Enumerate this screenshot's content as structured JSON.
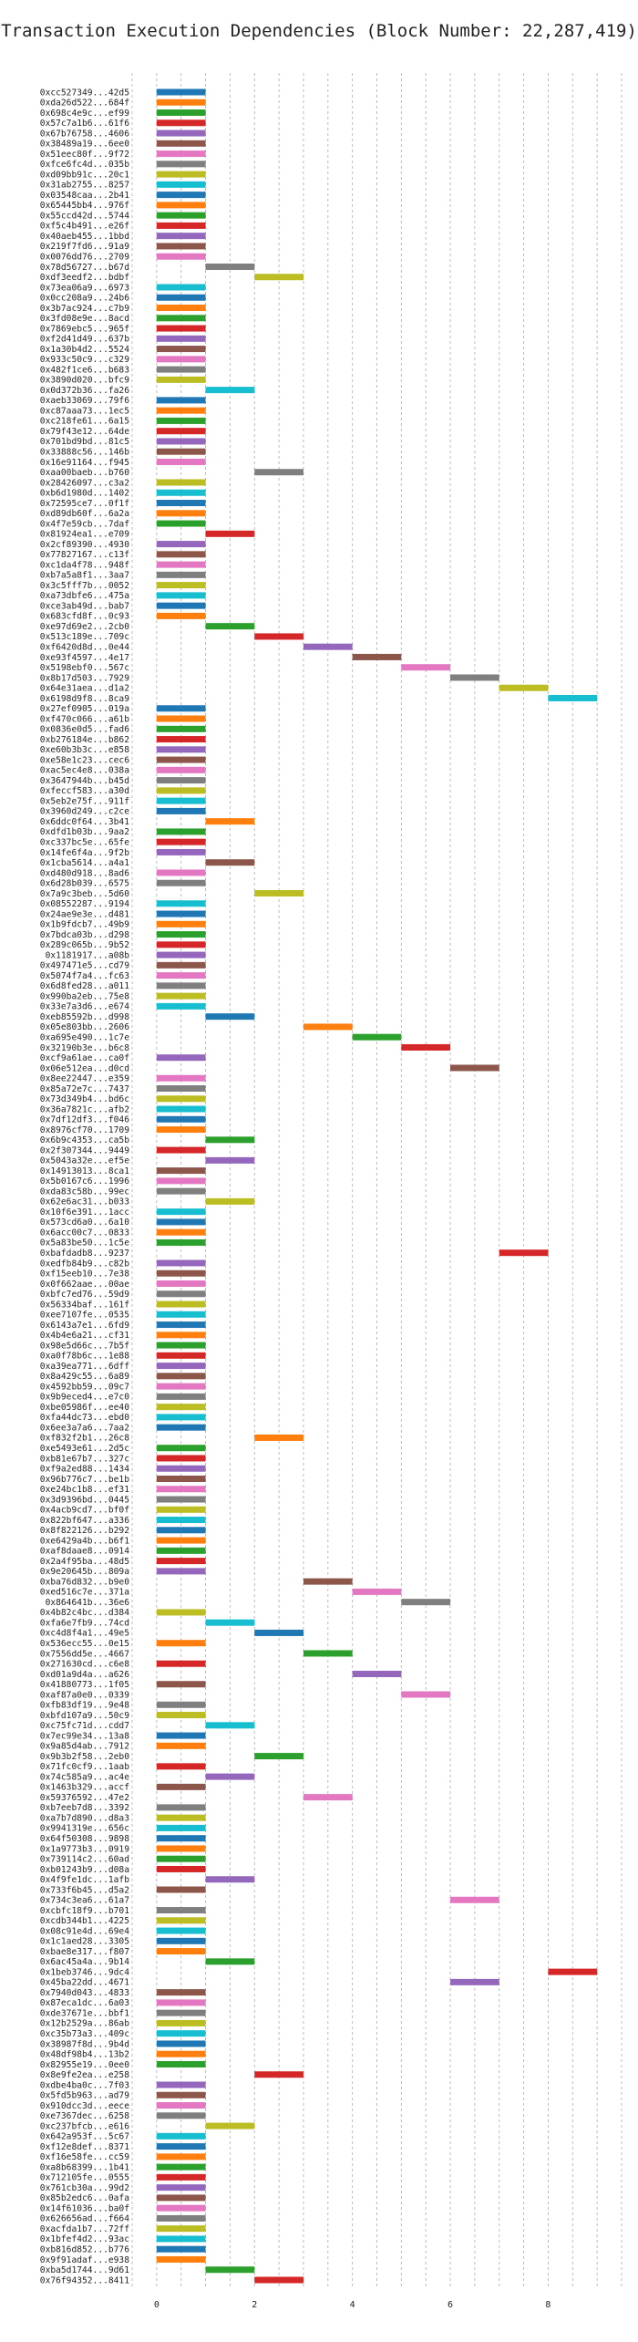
{
  "chart_data": {
    "type": "bar",
    "subtype": "gantt",
    "title": "Transaction Execution Dependencies (Block Number: 22,287,419)",
    "xlabel": "",
    "ylabel": "",
    "x_ticks": [
      0,
      2,
      4,
      6,
      8
    ],
    "x_grid_step": 0.5,
    "xlim": [
      -0.5,
      9.5
    ],
    "grid": true,
    "legend": "none",
    "palette": [
      "#1f77b4",
      "#ff7f0e",
      "#2ca02c",
      "#d62728",
      "#9467bd",
      "#8c564b",
      "#e377c2",
      "#7f7f7f",
      "#bcbd22",
      "#17becf"
    ],
    "transactions": [
      {
        "hash": "0xcc527349...42d5",
        "start": 0
      },
      {
        "hash": "0xda26d522...684f",
        "start": 0
      },
      {
        "hash": "0x698c4e9c...ef99",
        "start": 0
      },
      {
        "hash": "0x57c7a1b6...61f6",
        "start": 0
      },
      {
        "hash": "0x67b76758...4606",
        "start": 0
      },
      {
        "hash": "0x38489a19...6ee0",
        "start": 0
      },
      {
        "hash": "0x51eec80f...9f72",
        "start": 0
      },
      {
        "hash": "0xfce6fc4d...035b",
        "start": 0
      },
      {
        "hash": "0xd09bb91c...20c1",
        "start": 0
      },
      {
        "hash": "0x31ab2755...8257",
        "start": 0
      },
      {
        "hash": "0x03548caa...2b41",
        "start": 0
      },
      {
        "hash": "0x65445bb4...976f",
        "start": 0
      },
      {
        "hash": "0x55ccd42d...5744",
        "start": 0
      },
      {
        "hash": "0xf5c4b491...e26f",
        "start": 0
      },
      {
        "hash": "0x40aeb455...1bbd",
        "start": 0
      },
      {
        "hash": "0x219f7fd6...91a9",
        "start": 0
      },
      {
        "hash": "0x0076dd76...2709",
        "start": 0
      },
      {
        "hash": "0x78d56727...b67d",
        "start": 1
      },
      {
        "hash": "0xdf3eedf2...bdbf",
        "start": 2
      },
      {
        "hash": "0x73ea06a9...6973",
        "start": 0
      },
      {
        "hash": "0x0cc208a9...24b6",
        "start": 0
      },
      {
        "hash": "0x3b7ac924...c7b9",
        "start": 0
      },
      {
        "hash": "0x3fd08e9e...8acd",
        "start": 0
      },
      {
        "hash": "0x7869ebc5...965f",
        "start": 0
      },
      {
        "hash": "0xf2d41d49...637b",
        "start": 0
      },
      {
        "hash": "0x1a30b4d2...5524",
        "start": 0
      },
      {
        "hash": "0x933c50c9...c329",
        "start": 0
      },
      {
        "hash": "0x482f1ce6...b683",
        "start": 0
      },
      {
        "hash": "0x3890d020...bfc9",
        "start": 0
      },
      {
        "hash": "0x0d372b36...fa26",
        "start": 1
      },
      {
        "hash": "0xaeb33069...79f6",
        "start": 0
      },
      {
        "hash": "0xc87aaa73...1ec5",
        "start": 0
      },
      {
        "hash": "0xc218fe61...6a15",
        "start": 0
      },
      {
        "hash": "0x79f43e12...64de",
        "start": 0
      },
      {
        "hash": "0x701bd9bd...81c5",
        "start": 0
      },
      {
        "hash": "0x33888c56...146b",
        "start": 0
      },
      {
        "hash": "0x16e91164...f945",
        "start": 0
      },
      {
        "hash": "0xaa00baeb...b760",
        "start": 2
      },
      {
        "hash": "0x28426097...c3a2",
        "start": 0
      },
      {
        "hash": "0xb6d1980d...1402",
        "start": 0
      },
      {
        "hash": "0x72595ce7...0f1f",
        "start": 0
      },
      {
        "hash": "0xd89db60f...6a2a",
        "start": 0
      },
      {
        "hash": "0x4f7e59cb...7daf",
        "start": 0
      },
      {
        "hash": "0x81924ea1...e709",
        "start": 1
      },
      {
        "hash": "0x2cf89390...4930",
        "start": 0
      },
      {
        "hash": "0x77827167...c13f",
        "start": 0
      },
      {
        "hash": "0xc1da4f78...948f",
        "start": 0
      },
      {
        "hash": "0xb7a5a8f1...3aa7",
        "start": 0
      },
      {
        "hash": "0x3c5fff7b...0052",
        "start": 0
      },
      {
        "hash": "0xa73dbfe6...475a",
        "start": 0
      },
      {
        "hash": "0xce3ab49d...bab7",
        "start": 0
      },
      {
        "hash": "0x683cfd8f...0c93",
        "start": 0
      },
      {
        "hash": "0xe97d69e2...2cb0",
        "start": 1
      },
      {
        "hash": "0x513c189e...709c",
        "start": 2
      },
      {
        "hash": "0xf6420d8d...0e44",
        "start": 3
      },
      {
        "hash": "0xe93f4597...4e17",
        "start": 4
      },
      {
        "hash": "0x5198ebf0...567c",
        "start": 5
      },
      {
        "hash": "0x8b17d503...7929",
        "start": 6
      },
      {
        "hash": "0x64e31aea...d1a2",
        "start": 7
      },
      {
        "hash": "0x6198d9f8...8ca9",
        "start": 8
      },
      {
        "hash": "0x27ef0905...019a",
        "start": 0
      },
      {
        "hash": "0xf470c066...a61b",
        "start": 0
      },
      {
        "hash": "0x0836e0d5...fad6",
        "start": 0
      },
      {
        "hash": "0xb276184e...b862",
        "start": 0
      },
      {
        "hash": "0xe60b3b3c...e858",
        "start": 0
      },
      {
        "hash": "0xe58e1c23...cec6",
        "start": 0
      },
      {
        "hash": "0xac5ec4e8...038a",
        "start": 0
      },
      {
        "hash": "0x3647944b...b45d",
        "start": 0
      },
      {
        "hash": "0xfeccf583...a30d",
        "start": 0
      },
      {
        "hash": "0x5eb2e75f...911f",
        "start": 0
      },
      {
        "hash": "0x3960d249...c2ce",
        "start": 0
      },
      {
        "hash": "0x6ddc0f64...3b41",
        "start": 1
      },
      {
        "hash": "0xdfd1b03b...9aa2",
        "start": 0
      },
      {
        "hash": "0xc337bc5e...65fe",
        "start": 0
      },
      {
        "hash": "0x14fe6f4a...9f2b",
        "start": 0
      },
      {
        "hash": "0x1cba5614...a4a1",
        "start": 1
      },
      {
        "hash": "0xd480d918...8ad6",
        "start": 0
      },
      {
        "hash": "0x6d28b039...6575",
        "start": 0
      },
      {
        "hash": "0x7a9c3beb...5d60",
        "start": 2
      },
      {
        "hash": "0x08552287...9194",
        "start": 0
      },
      {
        "hash": "0x24ae9e3e...d481",
        "start": 0
      },
      {
        "hash": "0x1b9fdcb7...49b9",
        "start": 0
      },
      {
        "hash": "0x7bdca03b...d298",
        "start": 0
      },
      {
        "hash": "0x289c065b...9b52",
        "start": 0
      },
      {
        "hash": "0x1181917...a08b",
        "start": 0
      },
      {
        "hash": "0x497471e5...cd79",
        "start": 0
      },
      {
        "hash": "0x5074f7a4...fc63",
        "start": 0
      },
      {
        "hash": "0x6d8fed28...a011",
        "start": 0
      },
      {
        "hash": "0x990ba2eb...75e8",
        "start": 0
      },
      {
        "hash": "0x33e7a3d6...e674",
        "start": 0
      },
      {
        "hash": "0xeb85592b...d998",
        "start": 1
      },
      {
        "hash": "0x05e803bb...2606",
        "start": 3
      },
      {
        "hash": "0xa695e490...1c7e",
        "start": 4
      },
      {
        "hash": "0x32190b3e...b6c8",
        "start": 5
      },
      {
        "hash": "0xcf9a61ae...ca0f",
        "start": 0
      },
      {
        "hash": "0x06e512ea...d0cd",
        "start": 6
      },
      {
        "hash": "0x8ee22447...e359",
        "start": 0
      },
      {
        "hash": "0x85a72e7c...7437",
        "start": 0
      },
      {
        "hash": "0x73d349b4...bd6c",
        "start": 0
      },
      {
        "hash": "0x36a7821c...afb2",
        "start": 0
      },
      {
        "hash": "0x7df12df3...f046",
        "start": 0
      },
      {
        "hash": "0x8976cf70...1709",
        "start": 0
      },
      {
        "hash": "0x6b9c4353...ca5b",
        "start": 1
      },
      {
        "hash": "0x2f307344...9449",
        "start": 0
      },
      {
        "hash": "0x5043a32e...ef5e",
        "start": 1
      },
      {
        "hash": "0x14913013...8ca1",
        "start": 0
      },
      {
        "hash": "0x5b0167c6...1996",
        "start": 0
      },
      {
        "hash": "0xda83c58b...99ec",
        "start": 0
      },
      {
        "hash": "0x62e6ac31...b033",
        "start": 1
      },
      {
        "hash": "0x10f6e391...1acc",
        "start": 0
      },
      {
        "hash": "0x573cd6a0...6a10",
        "start": 0
      },
      {
        "hash": "0x6acc00c7...0833",
        "start": 0
      },
      {
        "hash": "0x5a83be50...1c5e",
        "start": 0
      },
      {
        "hash": "0xbafdadb8...9237",
        "start": 7
      },
      {
        "hash": "0xedfb84b9...c82b",
        "start": 0
      },
      {
        "hash": "0xf15eeb10...7e38",
        "start": 0
      },
      {
        "hash": "0x0f662aae...00ae",
        "start": 0
      },
      {
        "hash": "0xbfc7ed76...59d9",
        "start": 0
      },
      {
        "hash": "0x56334baf...161f",
        "start": 0
      },
      {
        "hash": "0xee7107fe...0535",
        "start": 0
      },
      {
        "hash": "0x6143a7e1...6fd9",
        "start": 0
      },
      {
        "hash": "0x4b4e6a21...cf31",
        "start": 0
      },
      {
        "hash": "0x98e5d66c...7b5f",
        "start": 0
      },
      {
        "hash": "0xa0f78b6c...1e88",
        "start": 0
      },
      {
        "hash": "0xa39ea771...6dff",
        "start": 0
      },
      {
        "hash": "0x8a429c55...6a89",
        "start": 0
      },
      {
        "hash": "0x4592bb59...09c7",
        "start": 0
      },
      {
        "hash": "0x9b9eced4...e7c0",
        "start": 0
      },
      {
        "hash": "0xbe05986f...ee40",
        "start": 0
      },
      {
        "hash": "0xfa44dc73...ebd0",
        "start": 0
      },
      {
        "hash": "0x6ee3a7a6...7aa2",
        "start": 0
      },
      {
        "hash": "0xf832f2b1...26c8",
        "start": 2
      },
      {
        "hash": "0xe5493e61...2d5c",
        "start": 0
      },
      {
        "hash": "0xb81e67b7...327c",
        "start": 0
      },
      {
        "hash": "0xf9a2ed88...1434",
        "start": 0
      },
      {
        "hash": "0x96b776c7...be1b",
        "start": 0
      },
      {
        "hash": "0xe24bc1b8...ef31",
        "start": 0
      },
      {
        "hash": "0x3d9396bd...0445",
        "start": 0
      },
      {
        "hash": "0x4acb9cd7...bf0f",
        "start": 0
      },
      {
        "hash": "0x822bf647...a336",
        "start": 0
      },
      {
        "hash": "0x8f822126...b292",
        "start": 0
      },
      {
        "hash": "0xe6429a4b...b6f1",
        "start": 0
      },
      {
        "hash": "0xaf8daae8...0914",
        "start": 0
      },
      {
        "hash": "0x2a4f95ba...48d5",
        "start": 0
      },
      {
        "hash": "0x9e20645b...809a",
        "start": 0
      },
      {
        "hash": "0xba76d832...b9e0",
        "start": 3
      },
      {
        "hash": "0xed516c7e...371a",
        "start": 4
      },
      {
        "hash": "0x864641b...36e6",
        "start": 5
      },
      {
        "hash": "0x4b82c4bc...d384",
        "start": 0
      },
      {
        "hash": "0xfa6e7fb9...74cd",
        "start": 1
      },
      {
        "hash": "0xc4d8f4a1...49e5",
        "start": 2
      },
      {
        "hash": "0x536ecc55...0e15",
        "start": 0
      },
      {
        "hash": "0x7556dd5e...4667",
        "start": 3
      },
      {
        "hash": "0x271630cd...c6e8",
        "start": 0
      },
      {
        "hash": "0xd01a9d4a...a626",
        "start": 4
      },
      {
        "hash": "0x41880773...1f05",
        "start": 0
      },
      {
        "hash": "0xaf87a0e0...0339",
        "start": 5
      },
      {
        "hash": "0xfb83df19...9e48",
        "start": 0
      },
      {
        "hash": "0xbfd107a9...50c9",
        "start": 0
      },
      {
        "hash": "0xc75fc71d...cdd7",
        "start": 1
      },
      {
        "hash": "0x7ec99e34...13a8",
        "start": 0
      },
      {
        "hash": "0x9a85d4ab...7912",
        "start": 0
      },
      {
        "hash": "0x9b3b2f58...2eb0",
        "start": 2
      },
      {
        "hash": "0x71fc0cf9...1aab",
        "start": 0
      },
      {
        "hash": "0x74c585a9...ac4e",
        "start": 1
      },
      {
        "hash": "0x1463b329...accf",
        "start": 0
      },
      {
        "hash": "0x59376592...47e2",
        "start": 3
      },
      {
        "hash": "0xb7eeb7d8...3392",
        "start": 0
      },
      {
        "hash": "0xa7b7d890...d8a3",
        "start": 0
      },
      {
        "hash": "0x9941319e...656c",
        "start": 0
      },
      {
        "hash": "0x64f50308...9898",
        "start": 0
      },
      {
        "hash": "0x1a9773b3...0919",
        "start": 0
      },
      {
        "hash": "0x739114c2...60ad",
        "start": 0
      },
      {
        "hash": "0xb01243b9...d08a",
        "start": 0
      },
      {
        "hash": "0x4f9fe1dc...1afb",
        "start": 1
      },
      {
        "hash": "0x733f6b45...d5a2",
        "start": 0
      },
      {
        "hash": "0x734c3ea6...61a7",
        "start": 6
      },
      {
        "hash": "0xcbfc18f9...b701",
        "start": 0
      },
      {
        "hash": "0xcdb344b1...4225",
        "start": 0
      },
      {
        "hash": "0x08c91e4d...69e4",
        "start": 0
      },
      {
        "hash": "0x1c1aed28...3305",
        "start": 0
      },
      {
        "hash": "0xbae8e317...f807",
        "start": 0
      },
      {
        "hash": "0x6ac45a4a...9b14",
        "start": 1
      },
      {
        "hash": "0x1beb3746...9dc4",
        "start": 8
      },
      {
        "hash": "0x45ba22dd...4671",
        "start": 6
      },
      {
        "hash": "0x7940d043...4833",
        "start": 0
      },
      {
        "hash": "0x87eca1dc...6a03",
        "start": 0
      },
      {
        "hash": "0xde37671e...bbf1",
        "start": 0
      },
      {
        "hash": "0x12b2529a...86ab",
        "start": 0
      },
      {
        "hash": "0xc35b73a3...409c",
        "start": 0
      },
      {
        "hash": "0x38987f8d...9b4d",
        "start": 0
      },
      {
        "hash": "0x48df98b4...13b2",
        "start": 0
      },
      {
        "hash": "0x82955e19...0ee0",
        "start": 0
      },
      {
        "hash": "0x8e9fe2ea...e258",
        "start": 2
      },
      {
        "hash": "0xdbe4ba0c...7f03",
        "start": 0
      },
      {
        "hash": "0x5fd5b963...ad79",
        "start": 0
      },
      {
        "hash": "0x910dcc3d...eece",
        "start": 0
      },
      {
        "hash": "0xe7367dec...6258",
        "start": 0
      },
      {
        "hash": "0xc237bfcb...e616",
        "start": 1
      },
      {
        "hash": "0x642a953f...5c67",
        "start": 0
      },
      {
        "hash": "0xf12e8def...8371",
        "start": 0
      },
      {
        "hash": "0xf16e58fe...cc59",
        "start": 0
      },
      {
        "hash": "0xa8b68399...1b41",
        "start": 0
      },
      {
        "hash": "0x712105fe...0555",
        "start": 0
      },
      {
        "hash": "0x761cb30a...99d2",
        "start": 0
      },
      {
        "hash": "0x85b2edc6...0afa",
        "start": 0
      },
      {
        "hash": "0x14f61036...ba0f",
        "start": 0
      },
      {
        "hash": "0x626656ad...f664",
        "start": 0
      },
      {
        "hash": "0xacfda1b7...72ff",
        "start": 0
      },
      {
        "hash": "0x1bfef4d2...93ac",
        "start": 0
      },
      {
        "hash": "0xb816d852...b776",
        "start": 0
      },
      {
        "hash": "0x9f91adaf...e938",
        "start": 0
      },
      {
        "hash": "0xba5d1744...9d61",
        "start": 1
      },
      {
        "hash": "0x76f94352...8411",
        "start": 2
      }
    ]
  }
}
